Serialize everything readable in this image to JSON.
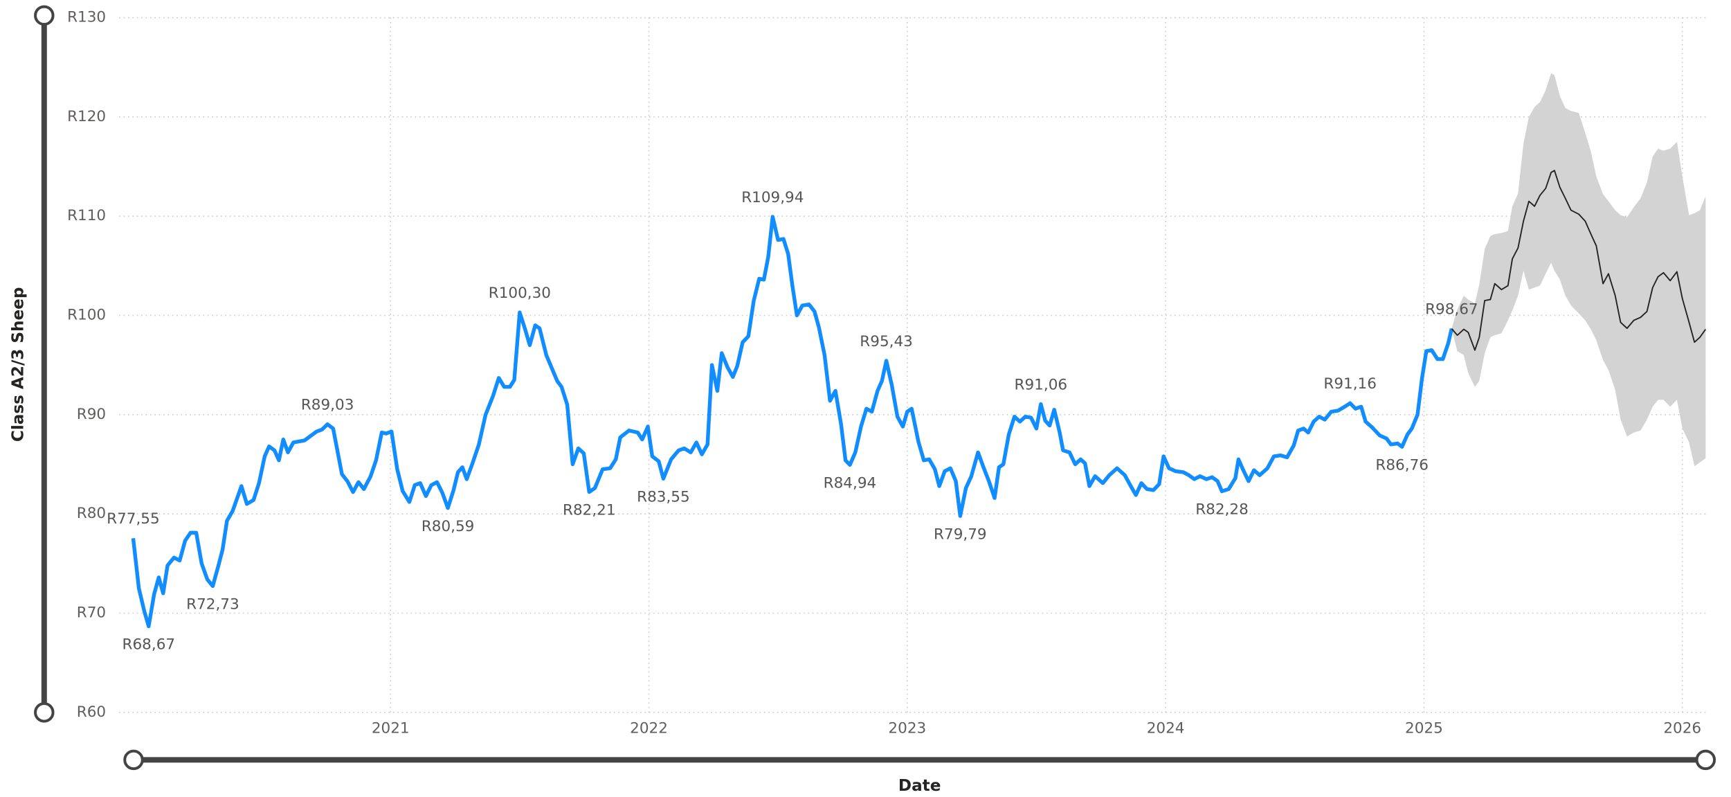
{
  "chart_data": {
    "type": "line",
    "y_label": "Class A2/3 Sheep",
    "x_label": "Date",
    "xlim": [
      2019.95,
      2026.09
    ],
    "xticks": [
      2021,
      2022,
      2023,
      2024,
      2025,
      2026
    ],
    "ylim": [
      60,
      130
    ],
    "yticks": [
      {
        "value": 60,
        "label": "R60"
      },
      {
        "value": 70,
        "label": "R70"
      },
      {
        "value": 80,
        "label": "R80"
      },
      {
        "value": 90,
        "label": "R90"
      },
      {
        "value": 100,
        "label": "R100"
      },
      {
        "value": 110,
        "label": "R110"
      },
      {
        "value": 120,
        "label": "R120"
      },
      {
        "value": 130,
        "label": "R130"
      }
    ],
    "grid": true,
    "series": [
      {
        "color": "#118dff",
        "x": [
          2020.004,
          2020.026,
          2020.047,
          2020.064,
          2020.085,
          2020.103,
          2020.12,
          2020.137,
          2020.162,
          2020.184,
          2020.205,
          2020.226,
          2020.248,
          2020.269,
          2020.291,
          2020.312,
          2020.333,
          2020.35,
          2020.367,
          2020.389,
          2020.423,
          2020.444,
          2020.47,
          2020.491,
          2020.513,
          2020.53,
          2020.551,
          2020.568,
          2020.585,
          2020.603,
          2020.624,
          2020.645,
          2020.667,
          2020.688,
          2020.714,
          2020.735,
          2020.756,
          2020.778,
          2020.812,
          2020.833,
          2020.855,
          2020.876,
          2020.897,
          2020.923,
          2020.944,
          2020.966,
          2020.983,
          2021.004,
          2021.026,
          2021.047,
          2021.073,
          2021.094,
          2021.115,
          2021.137,
          2021.158,
          2021.18,
          2021.201,
          2021.222,
          2021.244,
          2021.261,
          2021.278,
          2021.295,
          2021.316,
          2021.342,
          2021.368,
          2021.397,
          2021.419,
          2021.44,
          2021.462,
          2021.479,
          2021.5,
          2021.521,
          2021.539,
          2021.56,
          2021.577,
          2021.603,
          2021.624,
          2021.645,
          2021.662,
          2021.684,
          2021.705,
          2021.727,
          2021.748,
          2021.769,
          2021.791,
          2021.821,
          2021.85,
          2021.872,
          2021.889,
          2021.923,
          2021.957,
          2021.974,
          2021.996,
          2022.013,
          2022.038,
          2022.056,
          2022.086,
          2022.115,
          2022.137,
          2022.162,
          2022.184,
          2022.205,
          2022.227,
          2022.244,
          2022.265,
          2022.282,
          2022.304,
          2022.325,
          2022.342,
          2022.363,
          2022.385,
          2022.406,
          2022.427,
          2022.445,
          2022.462,
          2022.479,
          2022.5,
          2022.521,
          2022.539,
          2022.556,
          2022.573,
          2022.594,
          2022.62,
          2022.641,
          2022.658,
          2022.68,
          2022.701,
          2022.722,
          2022.744,
          2022.761,
          2022.778,
          2022.799,
          2022.821,
          2022.842,
          2022.863,
          2022.885,
          2022.902,
          2022.919,
          2022.94,
          2022.962,
          2022.983,
          2023.0,
          2023.017,
          2023.043,
          2023.064,
          2023.085,
          2023.107,
          2023.124,
          2023.145,
          2023.167,
          2023.188,
          2023.205,
          2023.227,
          2023.248,
          2023.274,
          2023.295,
          2023.316,
          2023.338,
          2023.355,
          2023.372,
          2023.393,
          2023.415,
          2023.436,
          2023.457,
          2023.479,
          2023.5,
          2023.517,
          2023.534,
          2023.551,
          2023.569,
          2023.59,
          2023.603,
          2023.628,
          2023.65,
          2023.671,
          2023.688,
          2023.705,
          2023.727,
          2023.757,
          2023.782,
          2023.812,
          2023.842,
          2023.863,
          2023.885,
          2023.906,
          2023.928,
          2023.953,
          2023.975,
          2023.992,
          2024.013,
          2024.039,
          2024.069,
          2024.09,
          2024.111,
          2024.133,
          2024.158,
          2024.18,
          2024.201,
          2024.218,
          2024.244,
          2024.27,
          2024.282,
          2024.299,
          2024.321,
          2024.342,
          2024.364,
          2024.394,
          2024.419,
          2024.445,
          2024.47,
          2024.496,
          2024.513,
          2024.534,
          2024.552,
          2024.573,
          2024.594,
          2024.616,
          2024.641,
          2024.667,
          2024.693,
          2024.714,
          2024.735,
          2024.757,
          2024.774,
          2024.8,
          2024.829,
          2024.855,
          2024.872,
          2024.898,
          2024.915,
          2024.936,
          2024.953,
          2024.975,
          2024.992,
          2025.009,
          2025.03,
          2025.052,
          2025.073,
          2025.094,
          2025.107
        ],
        "values": [
          77.55,
          72.5,
          70.2,
          68.67,
          71.9,
          73.6,
          72,
          74.8,
          75.6,
          75.3,
          77.3,
          78.1,
          78.1,
          75,
          73.4,
          72.73,
          74.7,
          76.4,
          79.3,
          80.3,
          82.8,
          81,
          81.4,
          83.1,
          85.8,
          86.8,
          86.4,
          85.4,
          87.5,
          86.2,
          87.2,
          87.3,
          87.4,
          87.8,
          88.3,
          88.5,
          89.03,
          88.6,
          84,
          83.3,
          82.2,
          83.2,
          82.5,
          83.8,
          85.4,
          88.2,
          88.1,
          88.3,
          84.5,
          82.3,
          81.2,
          82.9,
          83.1,
          81.8,
          82.9,
          83.2,
          82.1,
          80.59,
          82.4,
          84.2,
          84.7,
          83.5,
          85,
          87,
          90,
          91.9,
          93.7,
          92.8,
          92.8,
          93.5,
          100.3,
          98.6,
          97,
          99,
          98.7,
          96,
          94.7,
          93.4,
          92.8,
          91,
          85,
          86.6,
          86.1,
          82.21,
          82.6,
          84.5,
          84.6,
          85.5,
          87.7,
          88.4,
          88.2,
          87.5,
          88.8,
          85.8,
          85.3,
          83.55,
          85.5,
          86.4,
          86.6,
          86.2,
          87.2,
          86,
          87,
          95,
          92.4,
          96.2,
          94.8,
          93.8,
          94.9,
          97.3,
          97.9,
          101.5,
          103.7,
          103.6,
          105.9,
          109.94,
          107.6,
          107.7,
          106.2,
          102.9,
          100,
          101,
          101.1,
          100.4,
          98.8,
          96,
          91.4,
          92.4,
          89,
          85.4,
          84.94,
          86.2,
          88.8,
          90.6,
          90.3,
          92.4,
          93.4,
          95.43,
          93,
          89.8,
          88.8,
          90.3,
          90.6,
          87.3,
          85.4,
          85.5,
          84.5,
          82.8,
          84.3,
          84.6,
          83.3,
          79.79,
          82.6,
          83.8,
          86.2,
          84.7,
          83.3,
          81.6,
          84.7,
          85,
          88,
          89.8,
          89.3,
          89.8,
          89.7,
          88.6,
          91.06,
          89.4,
          88.9,
          90.5,
          88.2,
          86.4,
          86.2,
          85,
          85.5,
          85.1,
          82.8,
          83.8,
          83.1,
          83.9,
          84.6,
          83.9,
          82.9,
          81.9,
          83.1,
          82.5,
          82.4,
          83,
          85.8,
          84.6,
          84.3,
          84.2,
          83.9,
          83.5,
          83.8,
          83.5,
          83.7,
          83.3,
          82.28,
          82.5,
          83.6,
          85.5,
          84.5,
          83.3,
          84.4,
          83.9,
          84.6,
          85.8,
          85.9,
          85.7,
          86.9,
          88.4,
          88.6,
          88.2,
          89.3,
          89.8,
          89.5,
          90.3,
          90.4,
          90.8,
          91.16,
          90.6,
          90.8,
          89.3,
          88.7,
          87.9,
          87.6,
          87,
          87.1,
          86.76,
          88,
          88.6,
          90,
          93.6,
          96.4,
          96.5,
          95.6,
          95.6,
          97.2,
          98.67
        ],
        "value_labels": [
          "R77,55",
          null,
          null,
          "R68,67",
          null,
          null,
          null,
          null,
          null,
          null,
          null,
          null,
          null,
          null,
          null,
          "R72,73",
          null,
          null,
          null,
          null,
          null,
          null,
          null,
          null,
          null,
          null,
          null,
          null,
          null,
          null,
          null,
          null,
          null,
          null,
          null,
          null,
          "R89,03",
          null,
          null,
          null,
          null,
          null,
          null,
          null,
          null,
          null,
          null,
          null,
          null,
          null,
          null,
          null,
          null,
          null,
          null,
          null,
          null,
          "R80,59",
          null,
          null,
          null,
          null,
          null,
          null,
          null,
          null,
          null,
          null,
          null,
          null,
          "R100,30",
          null,
          null,
          null,
          null,
          null,
          null,
          null,
          null,
          null,
          null,
          null,
          null,
          "R82,21",
          null,
          null,
          null,
          null,
          null,
          null,
          null,
          null,
          null,
          null,
          null,
          "R83,55",
          null,
          null,
          null,
          null,
          null,
          null,
          null,
          null,
          null,
          null,
          null,
          null,
          null,
          null,
          null,
          null,
          null,
          null,
          null,
          "R109,94",
          null,
          null,
          null,
          null,
          null,
          null,
          null,
          null,
          null,
          null,
          null,
          null,
          null,
          null,
          "R84,94",
          null,
          null,
          null,
          null,
          null,
          null,
          "R95,43",
          null,
          null,
          null,
          null,
          null,
          null,
          null,
          null,
          null,
          null,
          null,
          null,
          null,
          "R79,79",
          null,
          null,
          null,
          null,
          null,
          null,
          null,
          null,
          null,
          null,
          null,
          null,
          null,
          null,
          "R91,06",
          null,
          null,
          null,
          null,
          null,
          null,
          null,
          null,
          null,
          null,
          null,
          null,
          null,
          null,
          null,
          null,
          null,
          null,
          null,
          null,
          null,
          null,
          null,
          null,
          null,
          null,
          null,
          null,
          null,
          null,
          null,
          "R82,28",
          null,
          null,
          null,
          null,
          null,
          null,
          null,
          null,
          null,
          null,
          null,
          null,
          null,
          null,
          null,
          null,
          null,
          null,
          null,
          null,
          null,
          "R91,16",
          null,
          null,
          null,
          null,
          null,
          null,
          null,
          null,
          "R86,76",
          null,
          null,
          null,
          null,
          null,
          null,
          null,
          null,
          null,
          "R98,67"
        ]
      },
      {
        "color": "#252423",
        "x": [
          2025.107,
          2025.129,
          2025.154,
          2025.171,
          2025.197,
          2025.214,
          2025.235,
          2025.257,
          2025.274,
          2025.3,
          2025.325,
          2025.342,
          2025.364,
          2025.385,
          2025.406,
          2025.428,
          2025.449,
          2025.471,
          2025.492,
          2025.505,
          2025.526,
          2025.547,
          2025.569,
          2025.599,
          2025.624,
          2025.646,
          2025.667,
          2025.693,
          2025.714,
          2025.74,
          2025.761,
          2025.786,
          2025.812,
          2025.838,
          2025.863,
          2025.885,
          2025.906,
          2025.927,
          2025.953,
          2025.979,
          2026.0,
          2026.026,
          2026.047,
          2026.068,
          2026.09
        ],
        "values": [
          98.67,
          98,
          98.6,
          98.3,
          96.5,
          97.8,
          101.5,
          101.6,
          103.2,
          102.6,
          103,
          105.7,
          106.8,
          109.5,
          111.5,
          111,
          112.1,
          112.8,
          114.4,
          114.6,
          112.9,
          111.8,
          110.6,
          110.2,
          109.5,
          108.2,
          107,
          103.2,
          104.2,
          102,
          99.3,
          98.7,
          99.5,
          99.8,
          100.4,
          102.8,
          103.9,
          104.3,
          103.5,
          104.4,
          101.7,
          99.3,
          97.3,
          97.8,
          98.6
        ]
      }
    ],
    "band": {
      "color": "#d3d3d3",
      "x": [
        2025.107,
        2025.129,
        2025.154,
        2025.171,
        2025.197,
        2025.214,
        2025.235,
        2025.257,
        2025.274,
        2025.3,
        2025.325,
        2025.342,
        2025.364,
        2025.385,
        2025.406,
        2025.428,
        2025.449,
        2025.471,
        2025.492,
        2025.505,
        2025.526,
        2025.547,
        2025.569,
        2025.599,
        2025.624,
        2025.646,
        2025.667,
        2025.693,
        2025.714,
        2025.74,
        2025.761,
        2025.786,
        2025.812,
        2025.838,
        2025.863,
        2025.885,
        2025.906,
        2025.927,
        2025.953,
        2025.979,
        2026.0,
        2026.026,
        2026.047,
        2026.068,
        2026.09
      ],
      "upper": [
        98.67,
        100.6,
        102,
        101.6,
        101.2,
        103.1,
        106.7,
        108,
        108.2,
        108.3,
        108.5,
        111,
        112.3,
        117.3,
        120,
        121,
        121.5,
        122.7,
        124.4,
        124.2,
        122.1,
        120.9,
        120.6,
        120.4,
        118.4,
        116.5,
        114,
        112.2,
        111.5,
        110.6,
        110.1,
        109.9,
        110.9,
        111.8,
        113.4,
        116,
        116.8,
        116.6,
        116.8,
        117.5,
        114,
        110.1,
        110.3,
        110.6,
        112
      ],
      "lower": [
        98.67,
        96.4,
        96,
        94.2,
        92.8,
        93.4,
        96.2,
        97.8,
        98,
        98.2,
        99.5,
        100.5,
        102,
        104.5,
        102.6,
        102.8,
        103,
        104.2,
        105.3,
        104.5,
        103.6,
        102,
        101,
        100.2,
        99.5,
        98.6,
        97.5,
        95.5,
        94.5,
        92.5,
        89.5,
        87.8,
        88.2,
        88.4,
        89.5,
        90.8,
        91.5,
        91.5,
        90.8,
        91.5,
        88.6,
        87.2,
        84.8,
        85.2,
        85.6
      ]
    }
  }
}
